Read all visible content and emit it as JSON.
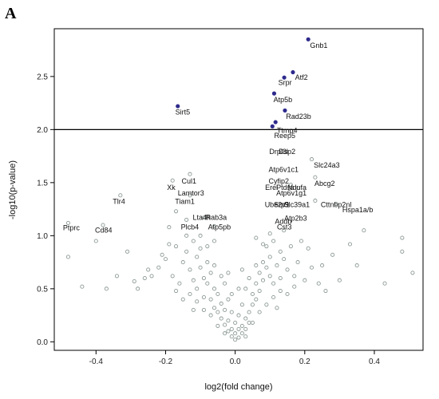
{
  "panel_label": "A",
  "chart_data": {
    "type": "scatter",
    "title": "",
    "xlabel": "log2(fold change)",
    "ylabel": "-log10(p-value)",
    "xlim": [
      -0.52,
      0.54
    ],
    "ylim": [
      -0.08,
      2.95
    ],
    "xticks": [
      -0.4,
      -0.2,
      0.0,
      0.2,
      0.4
    ],
    "xtick_labels": [
      "-0.4",
      "-0.2",
      "0.0",
      "0.2",
      "0.4"
    ],
    "yticks": [
      0.0,
      0.5,
      1.0,
      1.5,
      2.0,
      2.5
    ],
    "ytick_labels": [
      "0.0",
      "0.5",
      "1.0",
      "1.5",
      "2.0",
      "2.5"
    ],
    "threshold_y": 2.0,
    "grid": false,
    "colors": {
      "significant": "#2e2a8c",
      "nonsignificant": "#8c9a96",
      "threshold": "#000000"
    },
    "significant_points": [
      {
        "x": 0.21,
        "y": 2.85
      },
      {
        "x": 0.166,
        "y": 2.54
      },
      {
        "x": 0.141,
        "y": 2.49
      },
      {
        "x": 0.112,
        "y": 2.34
      },
      {
        "x": 0.143,
        "y": 2.18
      },
      {
        "x": -0.165,
        "y": 2.22
      },
      {
        "x": 0.116,
        "y": 2.07
      },
      {
        "x": 0.107,
        "y": 2.03
      }
    ],
    "labels": [
      {
        "text": "Gnb1",
        "x": 0.215,
        "y": 2.77
      },
      {
        "text": "Atf2",
        "x": 0.172,
        "y": 2.47
      },
      {
        "text": "Srpr",
        "x": 0.124,
        "y": 2.42
      },
      {
        "text": "Atp5b",
        "x": 0.11,
        "y": 2.26
      },
      {
        "text": "Rad23b",
        "x": 0.146,
        "y": 2.1
      },
      {
        "text": "Sirt5",
        "x": -0.172,
        "y": 2.14
      },
      {
        "text": "Ttmp4",
        "x": 0.12,
        "y": 1.97
      },
      {
        "text": "Reep5",
        "x": 0.112,
        "y": 1.92
      },
      {
        "text": "Drpl3l",
        "x": 0.098,
        "y": 1.77
      },
      {
        "text": "Dsp2",
        "x": 0.125,
        "y": 1.77
      },
      {
        "text": "Slc24a3",
        "x": 0.226,
        "y": 1.64
      },
      {
        "text": "Cul1",
        "x": -0.154,
        "y": 1.49
      },
      {
        "text": "Atp6v1c1",
        "x": 0.096,
        "y": 1.6
      },
      {
        "text": "Cyfip2",
        "x": 0.096,
        "y": 1.49
      },
      {
        "text": "Abcg2",
        "x": 0.228,
        "y": 1.47
      },
      {
        "text": "Xk",
        "x": -0.196,
        "y": 1.43
      },
      {
        "text": "Erel",
        "x": 0.086,
        "y": 1.43
      },
      {
        "text": "Ptdss",
        "x": 0.118,
        "y": 1.43
      },
      {
        "text": "Ndufa",
        "x": 0.15,
        "y": 1.43
      },
      {
        "text": "Lamtor3",
        "x": -0.165,
        "y": 1.38
      },
      {
        "text": "Atp6v1g1",
        "x": 0.118,
        "y": 1.38
      },
      {
        "text": "Tlr4",
        "x": -0.352,
        "y": 1.3
      },
      {
        "text": "Tiam1",
        "x": -0.173,
        "y": 1.3
      },
      {
        "text": "Cttnbp2nl",
        "x": 0.246,
        "y": 1.27
      },
      {
        "text": "Ube2v1",
        "x": 0.085,
        "y": 1.27
      },
      {
        "text": "Srp9",
        "x": 0.111,
        "y": 1.27
      },
      {
        "text": "Slc39a1",
        "x": 0.14,
        "y": 1.27
      },
      {
        "text": "Hspa1a/b",
        "x": 0.308,
        "y": 1.22
      },
      {
        "text": "Atp2b3",
        "x": 0.141,
        "y": 1.14
      },
      {
        "text": "Lta4h",
        "x": -0.122,
        "y": 1.15
      },
      {
        "text": "Rab3a",
        "x": -0.085,
        "y": 1.15
      },
      {
        "text": "Addb",
        "x": 0.114,
        "y": 1.11
      },
      {
        "text": "Ptprc",
        "x": -0.495,
        "y": 1.05
      },
      {
        "text": "Plcb4",
        "x": -0.156,
        "y": 1.06
      },
      {
        "text": "Atp5pb",
        "x": -0.078,
        "y": 1.06
      },
      {
        "text": "Cst3",
        "x": 0.12,
        "y": 1.06
      },
      {
        "text": "Cd84",
        "x": -0.403,
        "y": 1.03
      }
    ],
    "labeled_points": [
      {
        "x": -0.48,
        "y": 1.12
      },
      {
        "x": -0.38,
        "y": 1.1
      },
      {
        "x": -0.33,
        "y": 1.38
      },
      {
        "x": -0.18,
        "y": 1.52
      },
      {
        "x": -0.13,
        "y": 1.58
      },
      {
        "x": -0.17,
        "y": 1.23
      },
      {
        "x": -0.13,
        "y": 1.38
      },
      {
        "x": -0.14,
        "y": 1.15
      },
      {
        "x": -0.09,
        "y": 1.17
      },
      {
        "x": -0.19,
        "y": 1.08
      },
      {
        "x": -0.06,
        "y": 1.09
      },
      {
        "x": 0.22,
        "y": 1.72
      },
      {
        "x": 0.23,
        "y": 1.55
      },
      {
        "x": 0.23,
        "y": 1.33
      },
      {
        "x": 0.29,
        "y": 1.3
      },
      {
        "x": 0.18,
        "y": 1.45
      },
      {
        "x": 0.16,
        "y": 1.48
      }
    ],
    "background_points": [
      {
        "x": -0.48,
        "y": 0.8
      },
      {
        "x": -0.44,
        "y": 0.52
      },
      {
        "x": -0.4,
        "y": 0.95
      },
      {
        "x": -0.37,
        "y": 0.5
      },
      {
        "x": -0.34,
        "y": 0.62
      },
      {
        "x": -0.31,
        "y": 0.85
      },
      {
        "x": -0.29,
        "y": 0.57
      },
      {
        "x": -0.26,
        "y": 0.6
      },
      {
        "x": -0.24,
        "y": 0.62
      },
      {
        "x": -0.22,
        "y": 0.7
      },
      {
        "x": -0.2,
        "y": 0.78
      },
      {
        "x": -0.18,
        "y": 0.62
      },
      {
        "x": -0.17,
        "y": 0.9
      },
      {
        "x": -0.16,
        "y": 0.55
      },
      {
        "x": -0.15,
        "y": 0.75
      },
      {
        "x": -0.14,
        "y": 0.85
      },
      {
        "x": -0.13,
        "y": 0.68
      },
      {
        "x": -0.12,
        "y": 0.95
      },
      {
        "x": -0.12,
        "y": 0.58
      },
      {
        "x": -0.11,
        "y": 0.8
      },
      {
        "x": -0.11,
        "y": 0.5
      },
      {
        "x": -0.1,
        "y": 0.7
      },
      {
        "x": -0.1,
        "y": 0.88
      },
      {
        "x": -0.09,
        "y": 0.6
      },
      {
        "x": -0.09,
        "y": 0.42
      },
      {
        "x": -0.08,
        "y": 0.75
      },
      {
        "x": -0.08,
        "y": 0.55
      },
      {
        "x": -0.07,
        "y": 0.65
      },
      {
        "x": -0.07,
        "y": 0.4
      },
      {
        "x": -0.06,
        "y": 0.5
      },
      {
        "x": -0.06,
        "y": 0.32
      },
      {
        "x": -0.05,
        "y": 0.45
      },
      {
        "x": -0.05,
        "y": 0.28
      },
      {
        "x": -0.04,
        "y": 0.36
      },
      {
        "x": -0.04,
        "y": 0.22
      },
      {
        "x": -0.03,
        "y": 0.3
      },
      {
        "x": -0.03,
        "y": 0.16
      },
      {
        "x": -0.02,
        "y": 0.2
      },
      {
        "x": -0.02,
        "y": 0.1
      },
      {
        "x": -0.01,
        "y": 0.12
      },
      {
        "x": -0.01,
        "y": 0.05
      },
      {
        "x": 0.0,
        "y": 0.02
      },
      {
        "x": 0.0,
        "y": 0.08
      },
      {
        "x": 0.01,
        "y": 0.04
      },
      {
        "x": 0.01,
        "y": 0.12
      },
      {
        "x": 0.02,
        "y": 0.15
      },
      {
        "x": 0.02,
        "y": 0.08
      },
      {
        "x": 0.03,
        "y": 0.22
      },
      {
        "x": 0.03,
        "y": 0.12
      },
      {
        "x": 0.04,
        "y": 0.28
      },
      {
        "x": 0.04,
        "y": 0.18
      },
      {
        "x": 0.05,
        "y": 0.35
      },
      {
        "x": 0.05,
        "y": 0.45
      },
      {
        "x": 0.06,
        "y": 0.4
      },
      {
        "x": 0.06,
        "y": 0.55
      },
      {
        "x": 0.07,
        "y": 0.48
      },
      {
        "x": 0.07,
        "y": 0.65
      },
      {
        "x": 0.08,
        "y": 0.58
      },
      {
        "x": 0.08,
        "y": 0.75
      },
      {
        "x": 0.09,
        "y": 0.7
      },
      {
        "x": 0.09,
        "y": 0.9
      },
      {
        "x": 0.1,
        "y": 0.62
      },
      {
        "x": 0.1,
        "y": 0.8
      },
      {
        "x": 0.11,
        "y": 0.55
      },
      {
        "x": 0.11,
        "y": 0.95
      },
      {
        "x": 0.12,
        "y": 0.72
      },
      {
        "x": 0.13,
        "y": 0.85
      },
      {
        "x": 0.13,
        "y": 0.6
      },
      {
        "x": 0.14,
        "y": 0.78
      },
      {
        "x": 0.15,
        "y": 0.68
      },
      {
        "x": 0.16,
        "y": 0.9
      },
      {
        "x": 0.17,
        "y": 0.62
      },
      {
        "x": 0.18,
        "y": 0.75
      },
      {
        "x": 0.2,
        "y": 0.58
      },
      {
        "x": 0.22,
        "y": 0.7
      },
      {
        "x": 0.24,
        "y": 0.55
      },
      {
        "x": 0.26,
        "y": 0.48
      },
      {
        "x": 0.28,
        "y": 0.82
      },
      {
        "x": 0.3,
        "y": 0.58
      },
      {
        "x": 0.33,
        "y": 0.92
      },
      {
        "x": 0.37,
        "y": 1.05
      },
      {
        "x": 0.43,
        "y": 0.55
      },
      {
        "x": 0.48,
        "y": 0.98
      },
      {
        "x": 0.48,
        "y": 0.85
      },
      {
        "x": 0.51,
        "y": 0.65
      },
      {
        "x": -0.03,
        "y": 0.55
      },
      {
        "x": -0.02,
        "y": 0.4
      },
      {
        "x": 0.02,
        "y": 0.35
      },
      {
        "x": 0.03,
        "y": 0.5
      },
      {
        "x": -0.01,
        "y": 0.28
      },
      {
        "x": 0.01,
        "y": 0.25
      },
      {
        "x": -0.04,
        "y": 0.62
      },
      {
        "x": 0.04,
        "y": 0.6
      },
      {
        "x": -0.06,
        "y": 0.72
      },
      {
        "x": 0.06,
        "y": 0.72
      },
      {
        "x": -0.08,
        "y": 0.9
      },
      {
        "x": 0.08,
        "y": 0.92
      },
      {
        "x": -0.05,
        "y": 0.15
      },
      {
        "x": 0.05,
        "y": 0.18
      },
      {
        "x": -0.07,
        "y": 0.25
      },
      {
        "x": 0.07,
        "y": 0.28
      },
      {
        "x": -0.09,
        "y": 0.3
      },
      {
        "x": 0.09,
        "y": 0.35
      },
      {
        "x": -0.11,
        "y": 0.38
      },
      {
        "x": 0.11,
        "y": 0.42
      },
      {
        "x": -0.13,
        "y": 0.45
      },
      {
        "x": 0.13,
        "y": 0.48
      },
      {
        "x": -0.15,
        "y": 0.4
      },
      {
        "x": 0.15,
        "y": 0.45
      },
      {
        "x": -0.1,
        "y": 1.0
      },
      {
        "x": 0.1,
        "y": 1.02
      },
      {
        "x": -0.06,
        "y": 0.95
      },
      {
        "x": 0.06,
        "y": 0.98
      },
      {
        "x": -0.02,
        "y": 0.65
      },
      {
        "x": 0.02,
        "y": 0.68
      },
      {
        "x": -0.12,
        "y": 0.3
      },
      {
        "x": 0.12,
        "y": 0.32
      },
      {
        "x": -0.03,
        "y": 0.08
      },
      {
        "x": 0.03,
        "y": 0.05
      },
      {
        "x": 0.0,
        "y": 0.18
      },
      {
        "x": -0.01,
        "y": 0.45
      },
      {
        "x": 0.01,
        "y": 0.5
      },
      {
        "x": 0.14,
        "y": 1.05
      },
      {
        "x": -0.14,
        "y": 1.0
      },
      {
        "x": 0.19,
        "y": 0.95
      },
      {
        "x": -0.19,
        "y": 0.92
      },
      {
        "x": 0.21,
        "y": 0.88
      },
      {
        "x": -0.21,
        "y": 0.82
      },
      {
        "x": 0.17,
        "y": 0.52
      },
      {
        "x": -0.17,
        "y": 0.48
      },
      {
        "x": 0.25,
        "y": 0.72
      },
      {
        "x": -0.25,
        "y": 0.68
      },
      {
        "x": -0.28,
        "y": 0.5
      },
      {
        "x": 0.35,
        "y": 0.72
      }
    ]
  }
}
